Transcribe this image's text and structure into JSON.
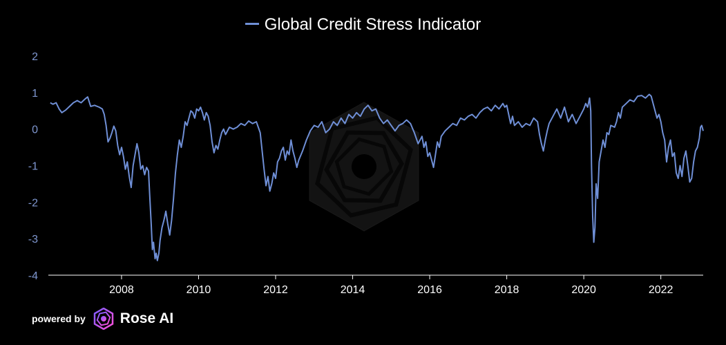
{
  "chart_data": {
    "type": "line",
    "legend": "Global Credit Stress Indicator",
    "legend_position": "top-center",
    "series_color": "#6f8fd6",
    "y_tick_color": "#7f97d0",
    "background": "#000000",
    "grid": false,
    "ylim": [
      -4,
      2
    ],
    "xlim": [
      2006.1,
      2023.1
    ],
    "y_ticks": [
      "2",
      "1",
      "0",
      "-1",
      "-2",
      "-3",
      "-4"
    ],
    "x_ticks": [
      "2008",
      "2010",
      "2012",
      "2014",
      "2016",
      "2018",
      "2020",
      "2022"
    ],
    "series": [
      {
        "name": "Global Credit Stress Indicator",
        "points": [
          [
            2006.15,
            0.72
          ],
          [
            2006.22,
            0.68
          ],
          [
            2006.3,
            0.72
          ],
          [
            2006.38,
            0.55
          ],
          [
            2006.45,
            0.45
          ],
          [
            2006.55,
            0.52
          ],
          [
            2006.65,
            0.62
          ],
          [
            2006.75,
            0.72
          ],
          [
            2006.85,
            0.78
          ],
          [
            2006.95,
            0.72
          ],
          [
            2007.05,
            0.82
          ],
          [
            2007.12,
            0.88
          ],
          [
            2007.2,
            0.62
          ],
          [
            2007.3,
            0.65
          ],
          [
            2007.42,
            0.6
          ],
          [
            2007.5,
            0.55
          ],
          [
            2007.55,
            0.4
          ],
          [
            2007.6,
            0.1
          ],
          [
            2007.65,
            -0.35
          ],
          [
            2007.7,
            -0.25
          ],
          [
            2007.75,
            -0.1
          ],
          [
            2007.8,
            0.08
          ],
          [
            2007.85,
            -0.05
          ],
          [
            2007.9,
            -0.45
          ],
          [
            2007.95,
            -0.7
          ],
          [
            2008.0,
            -0.5
          ],
          [
            2008.05,
            -0.75
          ],
          [
            2008.1,
            -1.1
          ],
          [
            2008.15,
            -0.9
          ],
          [
            2008.2,
            -1.3
          ],
          [
            2008.25,
            -1.6
          ],
          [
            2008.3,
            -1.0
          ],
          [
            2008.35,
            -0.7
          ],
          [
            2008.4,
            -0.4
          ],
          [
            2008.45,
            -0.65
          ],
          [
            2008.5,
            -1.1
          ],
          [
            2008.55,
            -1.0
          ],
          [
            2008.6,
            -1.25
          ],
          [
            2008.65,
            -1.05
          ],
          [
            2008.7,
            -1.15
          ],
          [
            2008.73,
            -1.8
          ],
          [
            2008.77,
            -2.6
          ],
          [
            2008.8,
            -3.3
          ],
          [
            2008.83,
            -3.1
          ],
          [
            2008.87,
            -3.55
          ],
          [
            2008.9,
            -3.4
          ],
          [
            2008.93,
            -3.6
          ],
          [
            2008.97,
            -3.4
          ],
          [
            2009.0,
            -3.05
          ],
          [
            2009.05,
            -2.7
          ],
          [
            2009.1,
            -2.5
          ],
          [
            2009.15,
            -2.25
          ],
          [
            2009.2,
            -2.6
          ],
          [
            2009.25,
            -2.9
          ],
          [
            2009.3,
            -2.5
          ],
          [
            2009.35,
            -1.9
          ],
          [
            2009.4,
            -1.2
          ],
          [
            2009.45,
            -0.7
          ],
          [
            2009.5,
            -0.3
          ],
          [
            2009.55,
            -0.5
          ],
          [
            2009.6,
            -0.2
          ],
          [
            2009.65,
            0.2
          ],
          [
            2009.7,
            0.1
          ],
          [
            2009.75,
            0.3
          ],
          [
            2009.8,
            0.5
          ],
          [
            2009.85,
            0.45
          ],
          [
            2009.9,
            0.3
          ],
          [
            2009.95,
            0.55
          ],
          [
            2010.0,
            0.5
          ],
          [
            2010.05,
            0.6
          ],
          [
            2010.1,
            0.45
          ],
          [
            2010.15,
            0.25
          ],
          [
            2010.2,
            0.45
          ],
          [
            2010.25,
            0.35
          ],
          [
            2010.3,
            0.1
          ],
          [
            2010.35,
            -0.35
          ],
          [
            2010.4,
            -0.65
          ],
          [
            2010.45,
            -0.45
          ],
          [
            2010.5,
            -0.55
          ],
          [
            2010.55,
            -0.3
          ],
          [
            2010.6,
            -0.1
          ],
          [
            2010.65,
            0.0
          ],
          [
            2010.7,
            -0.15
          ],
          [
            2010.8,
            0.05
          ],
          [
            2010.9,
            0.0
          ],
          [
            2011.0,
            0.05
          ],
          [
            2011.1,
            0.15
          ],
          [
            2011.2,
            0.1
          ],
          [
            2011.3,
            0.22
          ],
          [
            2011.4,
            0.15
          ],
          [
            2011.5,
            0.2
          ],
          [
            2011.55,
            0.05
          ],
          [
            2011.6,
            -0.1
          ],
          [
            2011.65,
            -0.6
          ],
          [
            2011.7,
            -1.1
          ],
          [
            2011.75,
            -1.55
          ],
          [
            2011.8,
            -1.3
          ],
          [
            2011.85,
            -1.7
          ],
          [
            2011.9,
            -1.5
          ],
          [
            2011.95,
            -1.2
          ],
          [
            2012.0,
            -1.35
          ],
          [
            2012.05,
            -0.9
          ],
          [
            2012.1,
            -0.8
          ],
          [
            2012.15,
            -0.6
          ],
          [
            2012.2,
            -0.5
          ],
          [
            2012.25,
            -0.85
          ],
          [
            2012.3,
            -0.6
          ],
          [
            2012.35,
            -0.7
          ],
          [
            2012.4,
            -0.3
          ],
          [
            2012.45,
            -0.6
          ],
          [
            2012.5,
            -0.8
          ],
          [
            2012.55,
            -1.05
          ],
          [
            2012.6,
            -0.85
          ],
          [
            2012.7,
            -0.6
          ],
          [
            2012.8,
            -0.3
          ],
          [
            2012.9,
            -0.05
          ],
          [
            2013.0,
            0.1
          ],
          [
            2013.1,
            0.05
          ],
          [
            2013.2,
            0.2
          ],
          [
            2013.3,
            -0.1
          ],
          [
            2013.4,
            0.0
          ],
          [
            2013.5,
            0.2
          ],
          [
            2013.6,
            0.1
          ],
          [
            2013.7,
            0.3
          ],
          [
            2013.8,
            0.15
          ],
          [
            2013.9,
            0.4
          ],
          [
            2014.0,
            0.3
          ],
          [
            2014.1,
            0.45
          ],
          [
            2014.2,
            0.35
          ],
          [
            2014.3,
            0.55
          ],
          [
            2014.4,
            0.65
          ],
          [
            2014.5,
            0.5
          ],
          [
            2014.6,
            0.55
          ],
          [
            2014.7,
            0.3
          ],
          [
            2014.8,
            0.15
          ],
          [
            2014.9,
            0.25
          ],
          [
            2015.0,
            0.1
          ],
          [
            2015.1,
            -0.05
          ],
          [
            2015.2,
            0.1
          ],
          [
            2015.3,
            0.15
          ],
          [
            2015.4,
            0.25
          ],
          [
            2015.5,
            0.15
          ],
          [
            2015.6,
            -0.1
          ],
          [
            2015.7,
            -0.4
          ],
          [
            2015.8,
            -0.2
          ],
          [
            2015.85,
            -0.5
          ],
          [
            2015.9,
            -0.35
          ],
          [
            2015.95,
            -0.75
          ],
          [
            2016.0,
            -0.65
          ],
          [
            2016.05,
            -0.85
          ],
          [
            2016.1,
            -1.05
          ],
          [
            2016.15,
            -0.7
          ],
          [
            2016.2,
            -0.35
          ],
          [
            2016.25,
            -0.5
          ],
          [
            2016.3,
            -0.2
          ],
          [
            2016.4,
            -0.05
          ],
          [
            2016.5,
            0.05
          ],
          [
            2016.6,
            0.15
          ],
          [
            2016.7,
            0.1
          ],
          [
            2016.8,
            0.3
          ],
          [
            2016.9,
            0.25
          ],
          [
            2017.0,
            0.35
          ],
          [
            2017.1,
            0.4
          ],
          [
            2017.2,
            0.3
          ],
          [
            2017.3,
            0.45
          ],
          [
            2017.4,
            0.55
          ],
          [
            2017.5,
            0.6
          ],
          [
            2017.6,
            0.5
          ],
          [
            2017.7,
            0.65
          ],
          [
            2017.8,
            0.55
          ],
          [
            2017.9,
            0.7
          ],
          [
            2017.95,
            0.6
          ],
          [
            2018.0,
            0.65
          ],
          [
            2018.05,
            0.4
          ],
          [
            2018.1,
            0.15
          ],
          [
            2018.15,
            0.35
          ],
          [
            2018.2,
            0.1
          ],
          [
            2018.3,
            0.2
          ],
          [
            2018.4,
            0.05
          ],
          [
            2018.5,
            0.15
          ],
          [
            2018.6,
            0.1
          ],
          [
            2018.7,
            0.3
          ],
          [
            2018.8,
            0.2
          ],
          [
            2018.85,
            -0.15
          ],
          [
            2018.9,
            -0.4
          ],
          [
            2018.95,
            -0.6
          ],
          [
            2019.0,
            -0.3
          ],
          [
            2019.05,
            -0.05
          ],
          [
            2019.1,
            0.15
          ],
          [
            2019.2,
            0.35
          ],
          [
            2019.3,
            0.55
          ],
          [
            2019.4,
            0.3
          ],
          [
            2019.5,
            0.6
          ],
          [
            2019.6,
            0.2
          ],
          [
            2019.7,
            0.4
          ],
          [
            2019.8,
            0.15
          ],
          [
            2019.9,
            0.35
          ],
          [
            2020.0,
            0.55
          ],
          [
            2020.05,
            0.7
          ],
          [
            2020.1,
            0.6
          ],
          [
            2020.15,
            0.85
          ],
          [
            2020.18,
            0.5
          ],
          [
            2020.2,
            -1.0
          ],
          [
            2020.23,
            -2.4
          ],
          [
            2020.26,
            -3.1
          ],
          [
            2020.29,
            -2.7
          ],
          [
            2020.32,
            -1.5
          ],
          [
            2020.36,
            -1.9
          ],
          [
            2020.4,
            -0.9
          ],
          [
            2020.45,
            -0.6
          ],
          [
            2020.5,
            -0.3
          ],
          [
            2020.55,
            -0.5
          ],
          [
            2020.6,
            -0.1
          ],
          [
            2020.65,
            -0.15
          ],
          [
            2020.7,
            0.1
          ],
          [
            2020.8,
            0.05
          ],
          [
            2020.85,
            0.2
          ],
          [
            2020.9,
            0.45
          ],
          [
            2020.95,
            0.3
          ],
          [
            2021.0,
            0.6
          ],
          [
            2021.1,
            0.7
          ],
          [
            2021.2,
            0.8
          ],
          [
            2021.3,
            0.75
          ],
          [
            2021.4,
            0.9
          ],
          [
            2021.5,
            0.92
          ],
          [
            2021.6,
            0.85
          ],
          [
            2021.7,
            0.95
          ],
          [
            2021.75,
            0.9
          ],
          [
            2021.8,
            0.7
          ],
          [
            2021.85,
            0.5
          ],
          [
            2021.9,
            0.3
          ],
          [
            2021.95,
            0.4
          ],
          [
            2022.0,
            0.2
          ],
          [
            2022.05,
            -0.1
          ],
          [
            2022.1,
            -0.3
          ],
          [
            2022.15,
            -0.9
          ],
          [
            2022.2,
            -0.5
          ],
          [
            2022.25,
            -0.3
          ],
          [
            2022.3,
            -0.75
          ],
          [
            2022.35,
            -0.65
          ],
          [
            2022.4,
            -1.2
          ],
          [
            2022.45,
            -1.35
          ],
          [
            2022.5,
            -1.0
          ],
          [
            2022.55,
            -1.3
          ],
          [
            2022.6,
            -0.8
          ],
          [
            2022.65,
            -0.6
          ],
          [
            2022.7,
            -1.0
          ],
          [
            2022.75,
            -1.45
          ],
          [
            2022.8,
            -1.35
          ],
          [
            2022.85,
            -0.9
          ],
          [
            2022.9,
            -0.6
          ],
          [
            2022.95,
            -0.5
          ],
          [
            2023.0,
            -0.25
          ],
          [
            2023.03,
            0.05
          ],
          [
            2023.06,
            0.1
          ],
          [
            2023.1,
            -0.05
          ]
        ]
      }
    ]
  },
  "branding": {
    "powered_by": "powered by",
    "name": "Rose AI"
  }
}
